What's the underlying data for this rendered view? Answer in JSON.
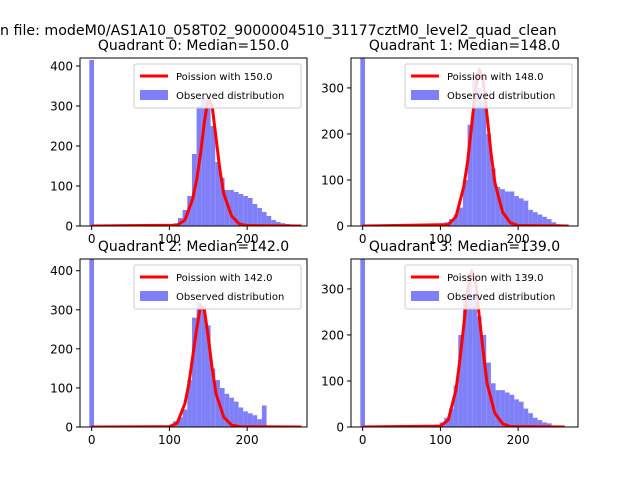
{
  "figure": {
    "suptitle": "n file: modeM0/AS1A10_058T02_9000004510_31177cztM0_level2_quad_clean"
  },
  "colors": {
    "hist": "#7f7ff7",
    "poisson": "#ff0000",
    "axis": "#000000",
    "legend_border": "#cccccc"
  },
  "chart_data": [
    {
      "type": "bar",
      "title": "Quadrant 0: Median=150.0",
      "median": 150.0,
      "legend": [
        "Poission with 150.0",
        "Observed distribution"
      ],
      "legend_position": "upper right",
      "xlim": [
        -15,
        277
      ],
      "ylim": [
        0,
        420
      ],
      "xticks": [
        0,
        100,
        200
      ],
      "yticks": [
        0,
        100,
        200,
        300,
        400
      ],
      "bin_width": 6,
      "bin_centers": [
        0,
        102,
        108,
        114,
        120,
        126,
        132,
        138,
        144,
        150,
        156,
        162,
        168,
        174,
        180,
        186,
        192,
        198,
        204,
        210,
        216,
        222,
        228,
        234,
        240,
        246,
        252,
        258,
        264
      ],
      "counts": [
        415,
        3,
        7,
        20,
        40,
        75,
        180,
        300,
        320,
        310,
        250,
        160,
        120,
        90,
        90,
        85,
        80,
        75,
        70,
        55,
        45,
        35,
        25,
        15,
        10,
        7,
        5,
        4,
        3
      ],
      "poisson_x": [
        0,
        110,
        120,
        130,
        135,
        140,
        145,
        150,
        155,
        160,
        165,
        170,
        180,
        190,
        200,
        270
      ],
      "poisson_y": [
        0,
        2,
        15,
        68,
        115,
        180,
        260,
        320,
        300,
        220,
        140,
        80,
        25,
        5,
        1,
        0
      ]
    },
    {
      "type": "bar",
      "title": "Quadrant 1: Median=148.0",
      "median": 148.0,
      "legend": [
        "Poission with 148.0",
        "Observed distribution"
      ],
      "legend_position": "upper right",
      "xlim": [
        -15,
        277
      ],
      "ylim": [
        0,
        365
      ],
      "xticks": [
        0,
        100,
        200
      ],
      "yticks": [
        0,
        100,
        200,
        300
      ],
      "bin_width": 6,
      "bin_centers": [
        0,
        96,
        102,
        108,
        114,
        120,
        126,
        132,
        138,
        144,
        150,
        156,
        162,
        168,
        174,
        180,
        186,
        192,
        198,
        204,
        210,
        216,
        222,
        228,
        234,
        240,
        246,
        252,
        258
      ],
      "counts": [
        365,
        3,
        5,
        8,
        15,
        25,
        40,
        100,
        220,
        330,
        300,
        270,
        200,
        125,
        85,
        80,
        75,
        75,
        65,
        60,
        55,
        35,
        30,
        25,
        20,
        15,
        8,
        4,
        2
      ],
      "poisson_x": [
        0,
        110,
        120,
        130,
        135,
        140,
        145,
        150,
        155,
        160,
        165,
        170,
        180,
        190,
        200,
        265
      ],
      "poisson_y": [
        0,
        3,
        20,
        85,
        140,
        215,
        295,
        340,
        315,
        240,
        160,
        95,
        30,
        7,
        1,
        0
      ]
    },
    {
      "type": "bar",
      "title": "Quadrant 2: Median=142.0",
      "median": 142.0,
      "legend": [
        "Poission with 142.0",
        "Observed distribution"
      ],
      "legend_position": "upper right",
      "xlim": [
        -15,
        277
      ],
      "ylim": [
        0,
        430
      ],
      "xticks": [
        0,
        100,
        200
      ],
      "yticks": [
        0,
        100,
        200,
        300,
        400
      ],
      "bin_width": 6,
      "bin_centers": [
        0,
        96,
        102,
        108,
        114,
        120,
        126,
        132,
        138,
        144,
        150,
        156,
        162,
        168,
        174,
        180,
        186,
        192,
        198,
        204,
        210,
        216,
        222
      ],
      "counts": [
        430,
        3,
        5,
        15,
        25,
        45,
        120,
        280,
        320,
        310,
        260,
        150,
        120,
        100,
        85,
        75,
        65,
        50,
        40,
        35,
        30,
        20,
        55
      ],
      "poisson_x": [
        0,
        100,
        110,
        120,
        125,
        130,
        135,
        140,
        145,
        150,
        155,
        160,
        170,
        180,
        190,
        270
      ],
      "poisson_y": [
        0,
        1,
        10,
        60,
        110,
        180,
        250,
        310,
        300,
        230,
        150,
        85,
        25,
        5,
        1,
        0
      ]
    },
    {
      "type": "bar",
      "title": "Quadrant 3: Median=139.0",
      "median": 139.0,
      "legend": [
        "Poission with 139.0",
        "Observed distribution"
      ],
      "legend_position": "upper right",
      "xlim": [
        -15,
        277
      ],
      "ylim": [
        0,
        365
      ],
      "xticks": [
        0,
        100,
        200
      ],
      "yticks": [
        0,
        100,
        200,
        300
      ],
      "bin_width": 6,
      "bin_centers": [
        0,
        90,
        96,
        102,
        108,
        114,
        120,
        126,
        132,
        138,
        144,
        150,
        156,
        162,
        168,
        174,
        180,
        186,
        192,
        198,
        204,
        210,
        216,
        222,
        228,
        234,
        240
      ],
      "counts": [
        365,
        3,
        5,
        10,
        20,
        40,
        90,
        200,
        280,
        330,
        290,
        240,
        200,
        140,
        95,
        80,
        80,
        75,
        70,
        60,
        55,
        40,
        30,
        20,
        15,
        10,
        8
      ],
      "poisson_x": [
        0,
        100,
        110,
        120,
        125,
        130,
        135,
        140,
        145,
        150,
        155,
        160,
        170,
        180,
        190,
        260
      ],
      "poisson_y": [
        0,
        2,
        15,
        80,
        145,
        220,
        300,
        340,
        320,
        240,
        165,
        95,
        30,
        7,
        1,
        0
      ]
    }
  ]
}
